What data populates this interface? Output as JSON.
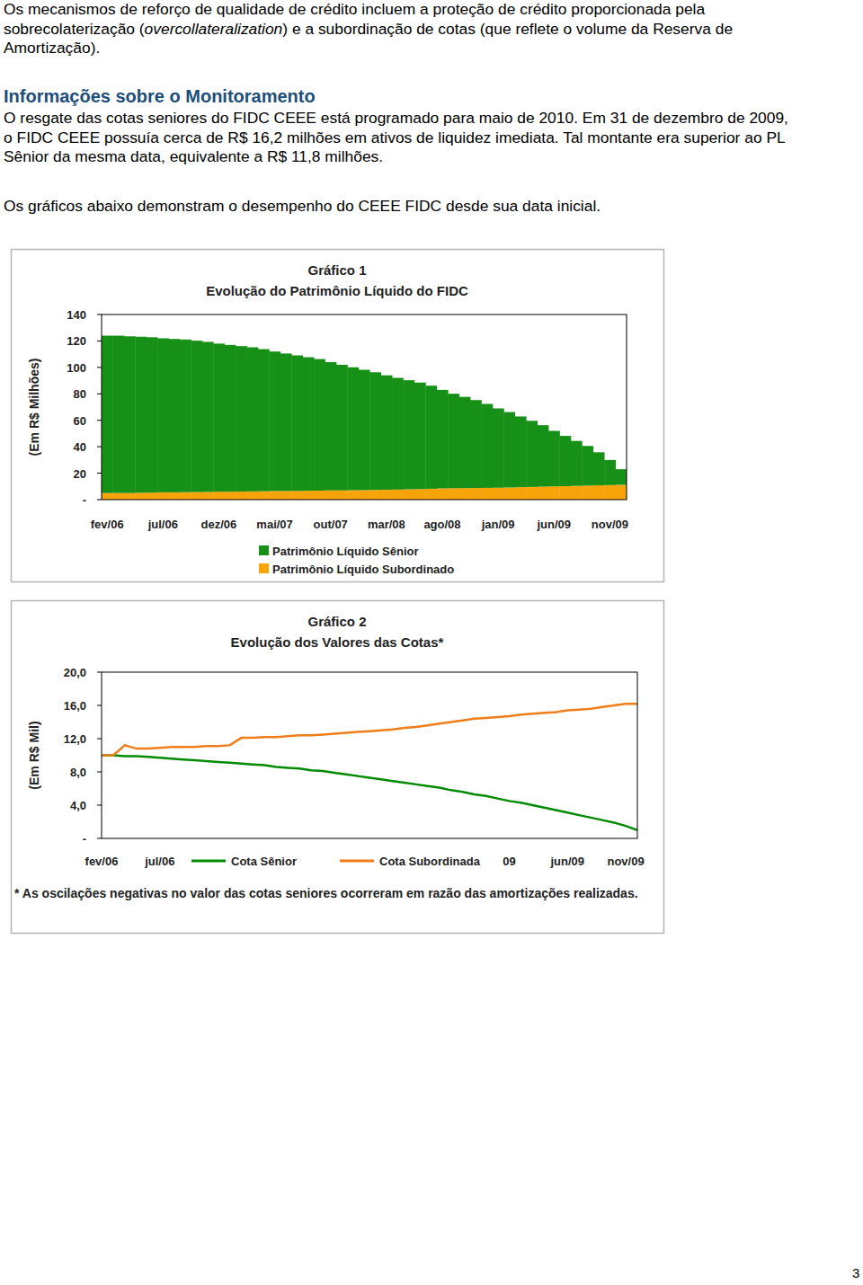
{
  "document": {
    "intro": {
      "before": "Os mecanismos de reforço de qualidade de crédito incluem a proteção de crédito proporcionada pela sobrecolaterização (",
      "italic": "overcollateralization",
      "after": ") e a subordinação de cotas (que reflete o volume da Reserva de Amortização)."
    },
    "heading": "Informações sobre o Monitoramento",
    "monitoring": "O resgate das cotas seniores do FIDC CEEE está programado para maio de 2010. Em 31 de dezembro de 2009, o FIDC CEEE possuía cerca de R$ 16,2 milhões em ativos de liquidez imediata. Tal montante era superior ao PL Sênior da mesma data, equivalente a R$ 11,8 milhões.",
    "charts_intro": "Os gráficos abaixo demonstram o desempenho do CEEE FIDC desde sua data inicial.",
    "page_number": "3"
  },
  "chart_data": [
    {
      "type": "bar",
      "title": "Gráfico 1",
      "subtitle": "Evolução do Patrimônio Líquido do FIDC",
      "y_label": "(Em R$ Milhões)",
      "stacked": true,
      "grid": false,
      "legend": "bottom",
      "categories": [
        "fev/06",
        null,
        null,
        null,
        null,
        "jul/06",
        null,
        null,
        null,
        null,
        "dez/06",
        null,
        null,
        null,
        null,
        "mai/07",
        null,
        null,
        null,
        null,
        "out/07",
        null,
        null,
        null,
        null,
        "mar/08",
        null,
        null,
        null,
        null,
        "ago/08",
        null,
        null,
        null,
        null,
        "jan/09",
        null,
        null,
        null,
        null,
        "jun/09",
        null,
        null,
        null,
        null,
        "nov/09",
        null
      ],
      "series": [
        {
          "name": "Patrimônio Líquido Sênior",
          "color": "#169016",
          "values": [
            119,
            119,
            118.5,
            118,
            117.5,
            116.5,
            116,
            115.5,
            114.5,
            113.5,
            112,
            111,
            110,
            109,
            107.5,
            105.5,
            104,
            102.5,
            101,
            99.5,
            97,
            95,
            93,
            91,
            89,
            86.5,
            84.5,
            82.5,
            80.5,
            78,
            74.5,
            71.5,
            69,
            66.5,
            63.5,
            60,
            57,
            53.5,
            50,
            46.5,
            42,
            38,
            34,
            30,
            25,
            19,
            11.8
          ]
        },
        {
          "name": "Patrimônio Líquido Subordinado",
          "color": "#f7a30a",
          "values": [
            5,
            5,
            5,
            5.2,
            5.3,
            5.5,
            5.5,
            5.6,
            5.7,
            5.8,
            6,
            6,
            6.1,
            6.2,
            6.3,
            6.5,
            6.5,
            6.6,
            6.7,
            6.8,
            7,
            7,
            7.1,
            7.2,
            7.3,
            7.5,
            7.6,
            7.8,
            8,
            8.2,
            8.5,
            8.6,
            8.7,
            8.8,
            8.9,
            9,
            9.2,
            9.4,
            9.6,
            9.8,
            10,
            10.2,
            10.4,
            10.6,
            10.8,
            11,
            11.2
          ]
        }
      ],
      "ylim": [
        0,
        140
      ],
      "yticks": [
        {
          "value": 0,
          "label": "-"
        },
        20,
        40,
        60,
        80,
        100,
        120,
        140
      ]
    },
    {
      "type": "line",
      "title": "Gráfico 2",
      "subtitle": "Evolução dos Valores das Cotas*",
      "y_label": "(Em R$ Mil)",
      "grid": false,
      "legend": "bottom",
      "annotations": [
        "* As oscilações negativas no valor das cotas seniores ocorreram em razão das amortizações realizadas."
      ],
      "categories": [
        "fev/06",
        null,
        null,
        null,
        null,
        "jul/06",
        null,
        null,
        null,
        null,
        null,
        null,
        null,
        null,
        null,
        null,
        null,
        null,
        null,
        null,
        null,
        null,
        null,
        null,
        null,
        null,
        null,
        null,
        null,
        null,
        null,
        null,
        null,
        null,
        null,
        "09",
        null,
        null,
        null,
        null,
        "jun/09",
        null,
        null,
        null,
        null,
        "nov/09",
        null
      ],
      "series": [
        {
          "name": "Cota Sênior",
          "color": "#008a00",
          "line_style": "solid",
          "values": [
            10,
            10,
            9.9,
            9.9,
            9.8,
            9.7,
            9.6,
            9.5,
            9.4,
            9.3,
            9.2,
            9.1,
            9.0,
            8.9,
            8.8,
            8.6,
            8.5,
            8.4,
            8.2,
            8.1,
            7.9,
            7.7,
            7.5,
            7.3,
            7.1,
            6.9,
            6.7,
            6.5,
            6.3,
            6.1,
            5.8,
            5.6,
            5.3,
            5.1,
            4.8,
            4.5,
            4.3,
            4.0,
            3.7,
            3.4,
            3.1,
            2.8,
            2.5,
            2.2,
            1.9,
            1.5,
            1.0
          ]
        },
        {
          "name": "Cota Subordinada",
          "color": "#ee7d1a",
          "line_style": "solid",
          "values": [
            10,
            10,
            11.2,
            10.8,
            10.8,
            10.9,
            11,
            11,
            11,
            11.1,
            11.1,
            11.2,
            12.1,
            12.1,
            12.2,
            12.2,
            12.3,
            12.4,
            12.4,
            12.5,
            12.6,
            12.7,
            12.8,
            12.9,
            13.0,
            13.1,
            13.3,
            13.4,
            13.6,
            13.8,
            14.0,
            14.2,
            14.4,
            14.5,
            14.6,
            14.7,
            14.9,
            15.0,
            15.1,
            15.2,
            15.4,
            15.5,
            15.6,
            15.8,
            16.0,
            16.2,
            16.2
          ]
        }
      ],
      "ylim": [
        0,
        20
      ],
      "yticks": [
        {
          "value": 0,
          "label": "-"
        },
        {
          "value": 4,
          "label": "4,0"
        },
        {
          "value": 8,
          "label": "8,0"
        },
        {
          "value": 12,
          "label": "12,0"
        },
        {
          "value": 16,
          "label": "16,0"
        },
        {
          "value": 20,
          "label": "20,0"
        }
      ]
    }
  ]
}
